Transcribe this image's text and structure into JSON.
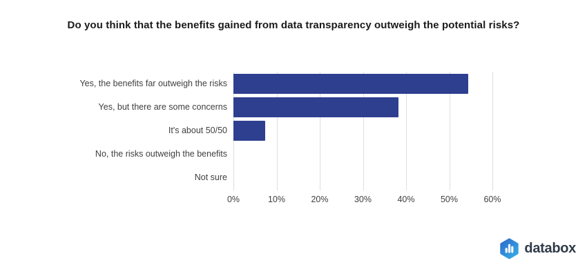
{
  "title": "Do you think that the benefits gained from data transparency outweigh the potential risks?",
  "chart_data": {
    "type": "bar",
    "orientation": "horizontal",
    "title": "Do you think that the benefits gained from data transparency outweigh the potential risks?",
    "categories": [
      "Yes, the benefits far outweigh the risks",
      "Yes, but there are some concerns",
      "It's about 50/50",
      "No, the risks outweigh the benefits",
      "Not sure"
    ],
    "values": [
      54.4,
      38.2,
      7.4,
      0,
      0
    ],
    "value_unit": "%",
    "xlabel": "",
    "ylabel": "",
    "xlim": [
      0,
      60
    ],
    "x_tick_values": [
      0,
      10,
      20,
      30,
      40,
      50,
      60
    ],
    "x_tick_labels": [
      "0%",
      "10%",
      "20%",
      "30%",
      "40%",
      "50%",
      "60%"
    ],
    "grid": true,
    "legend_position": "none",
    "bar_color": "#2e3f90",
    "gridline_color": "#dedede",
    "label_color": "#3f3f3f",
    "title_color": "#1a1a1a",
    "background_color": "#ffffff"
  },
  "branding": {
    "logo_text": "databox",
    "logo_icon": "bar-chart-hexagon-icon",
    "logo_gradient_start": "#2d62c9",
    "logo_gradient_end": "#38b6e8",
    "logo_text_color": "#303a48"
  }
}
